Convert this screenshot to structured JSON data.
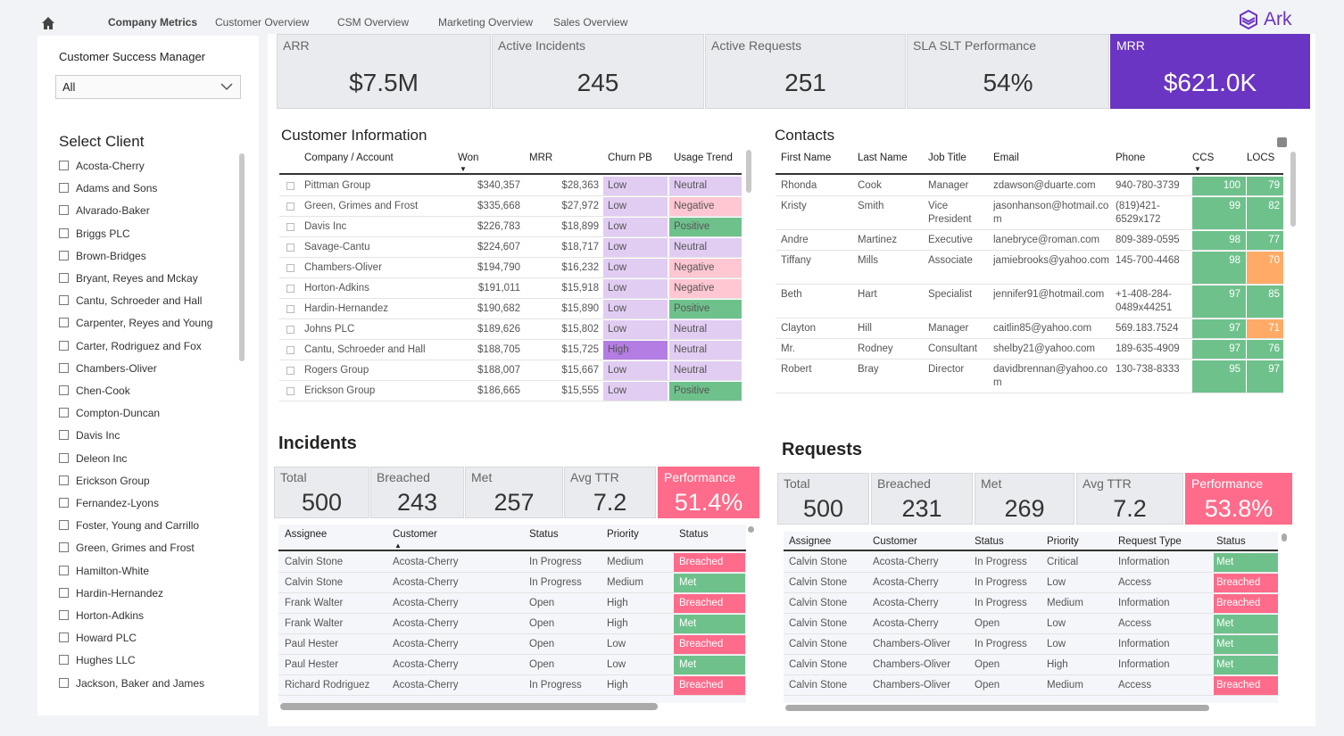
{
  "nav": {
    "home_icon": "home-icon",
    "tabs": [
      "Company Metrics",
      "Customer Overview",
      "CSM Overview",
      "Marketing Overview",
      "Sales Overview"
    ],
    "logo": "Ark"
  },
  "kpis": [
    {
      "label": "ARR",
      "value": "$7.5M"
    },
    {
      "label": "Active Incidents",
      "value": "245"
    },
    {
      "label": "Active Requests",
      "value": "251"
    },
    {
      "label": "SLA SLT Performance",
      "value": "54%"
    },
    {
      "label": "MRR",
      "value": "$621.0K"
    }
  ],
  "colors": {
    "accent": "#6a35c2",
    "met": "#6fc18c",
    "breached": "#ff6b8a",
    "low": "#e1ccf2",
    "high": "#b47de3",
    "negative": "#ffc7d2",
    "positive": "#6fc18c",
    "neutral": "#e1ccf2",
    "orange": "#ffaa66"
  },
  "filters": {
    "csm_label": "Customer Success Manager",
    "csm_value": "All",
    "select_client_label": "Select Client",
    "clients": [
      "Acosta-Cherry",
      "Adams and Sons",
      "Alvarado-Baker",
      "Briggs PLC",
      "Brown-Bridges",
      "Bryant, Reyes and Mckay",
      "Cantu, Schroeder and Hall",
      "Carpenter, Reyes and Young",
      "Carter, Rodriguez and Fox",
      "Chambers-Oliver",
      "Chen-Cook",
      "Compton-Duncan",
      "Davis Inc",
      "Deleon Inc",
      "Erickson Group",
      "Fernandez-Lyons",
      "Foster, Young and Carrillo",
      "Green, Grimes and Frost",
      "Hamilton-White",
      "Hardin-Hernandez",
      "Horton-Adkins",
      "Howard PLC",
      "Hughes LLC",
      "Jackson, Baker and James"
    ]
  },
  "customer_info": {
    "title": "Customer Information",
    "columns": [
      "Company / Account",
      "Won",
      "MRR",
      "Churn PB",
      "Usage Trend"
    ],
    "rows": [
      [
        "Pittman Group",
        "$340,357",
        "$28,363",
        "Low",
        "Neutral"
      ],
      [
        "Green, Grimes and Frost",
        "$335,668",
        "$27,972",
        "Low",
        "Negative"
      ],
      [
        "Davis Inc",
        "$226,783",
        "$18,899",
        "Low",
        "Positive"
      ],
      [
        "Savage-Cantu",
        "$224,607",
        "$18,717",
        "Low",
        "Neutral"
      ],
      [
        "Chambers-Oliver",
        "$194,790",
        "$16,232",
        "Low",
        "Negative"
      ],
      [
        "Horton-Adkins",
        "$191,011",
        "$15,918",
        "Low",
        "Negative"
      ],
      [
        "Hardin-Hernandez",
        "$190,682",
        "$15,890",
        "Low",
        "Positive"
      ],
      [
        "Johns PLC",
        "$189,626",
        "$15,802",
        "Low",
        "Neutral"
      ],
      [
        "Cantu, Schroeder and Hall",
        "$188,705",
        "$15,725",
        "High",
        "Neutral"
      ],
      [
        "Rogers Group",
        "$188,007",
        "$15,667",
        "Low",
        "Neutral"
      ],
      [
        "Erickson Group",
        "$186,665",
        "$15,555",
        "Low",
        "Positive"
      ]
    ]
  },
  "contacts": {
    "title": "Contacts",
    "columns": [
      "First Name",
      "Last Name",
      "Job Title",
      "Email",
      "Phone",
      "CCS",
      "LOCS"
    ],
    "rows": [
      [
        "Rhonda",
        "Cook",
        "Manager",
        "zdawson@duarte.com",
        "940-780-3739",
        "100",
        "79"
      ],
      [
        "Kristy",
        "Smith",
        "Vice President",
        "jasonhanson@hotmail.com",
        "(819)421-6529x172",
        "99",
        "82"
      ],
      [
        "Andre",
        "Martinez",
        "Executive",
        "lanebryce@roman.com",
        "809-389-0595",
        "98",
        "77"
      ],
      [
        "Tiffany",
        "Mills",
        "Associate",
        "jamiebrooks@yahoo.com",
        "145-700-4468",
        "98",
        "70"
      ],
      [
        "Beth",
        "Hart",
        "Specialist",
        "jennifer91@hotmail.com",
        "+1-408-284-0489x44251",
        "97",
        "85"
      ],
      [
        "Clayton",
        "Hill",
        "Manager",
        "caitlin85@yahoo.com",
        "569.183.7524",
        "97",
        "71"
      ],
      [
        "Mr.",
        "Rodney",
        "Consultant",
        "shelby21@yahoo.com",
        "189-635-4909",
        "97",
        "76"
      ],
      [
        "Robert",
        "Bray",
        "Director",
        "davidbrennan@yahoo.com",
        "130-738-8333",
        "95",
        "97"
      ]
    ]
  },
  "incidents": {
    "title": "Incidents",
    "kpis": [
      {
        "label": "Total",
        "value": "500"
      },
      {
        "label": "Breached",
        "value": "243"
      },
      {
        "label": "Met",
        "value": "257"
      },
      {
        "label": "Avg TTR",
        "value": "7.2"
      },
      {
        "label": "Performance",
        "value": "51.4%"
      }
    ],
    "columns": [
      "Assignee",
      "Customer",
      "Status",
      "Priority",
      "Status"
    ],
    "rows": [
      [
        "Calvin Stone",
        "Acosta-Cherry",
        "In Progress",
        "Medium",
        "Breached"
      ],
      [
        "Calvin Stone",
        "Acosta-Cherry",
        "In Progress",
        "Medium",
        "Met"
      ],
      [
        "Frank Walter",
        "Acosta-Cherry",
        "Open",
        "High",
        "Breached"
      ],
      [
        "Frank Walter",
        "Acosta-Cherry",
        "Open",
        "High",
        "Met"
      ],
      [
        "Paul Hester",
        "Acosta-Cherry",
        "Open",
        "Low",
        "Breached"
      ],
      [
        "Paul Hester",
        "Acosta-Cherry",
        "Open",
        "Low",
        "Met"
      ],
      [
        "Richard Rodriguez",
        "Acosta-Cherry",
        "In Progress",
        "High",
        "Breached"
      ]
    ]
  },
  "requests": {
    "title": "Requests",
    "kpis": [
      {
        "label": "Total",
        "value": "500"
      },
      {
        "label": "Breached",
        "value": "231"
      },
      {
        "label": "Met",
        "value": "269"
      },
      {
        "label": "Avg TTR",
        "value": "7.2"
      },
      {
        "label": "Performance",
        "value": "53.8%"
      }
    ],
    "columns": [
      "Assignee",
      "Customer",
      "Status",
      "Priority",
      "Request Type",
      "Status"
    ],
    "rows": [
      [
        "Calvin Stone",
        "Acosta-Cherry",
        "In Progress",
        "Critical",
        "Information",
        "Met"
      ],
      [
        "Calvin Stone",
        "Acosta-Cherry",
        "In Progress",
        "Low",
        "Access",
        "Breached"
      ],
      [
        "Calvin Stone",
        "Acosta-Cherry",
        "In Progress",
        "Medium",
        "Information",
        "Breached"
      ],
      [
        "Calvin Stone",
        "Acosta-Cherry",
        "Open",
        "Low",
        "Access",
        "Met"
      ],
      [
        "Calvin Stone",
        "Chambers-Oliver",
        "In Progress",
        "Low",
        "Information",
        "Met"
      ],
      [
        "Calvin Stone",
        "Chambers-Oliver",
        "Open",
        "High",
        "Information",
        "Met"
      ],
      [
        "Calvin Stone",
        "Chambers-Oliver",
        "Open",
        "Medium",
        "Access",
        "Breached"
      ]
    ]
  }
}
